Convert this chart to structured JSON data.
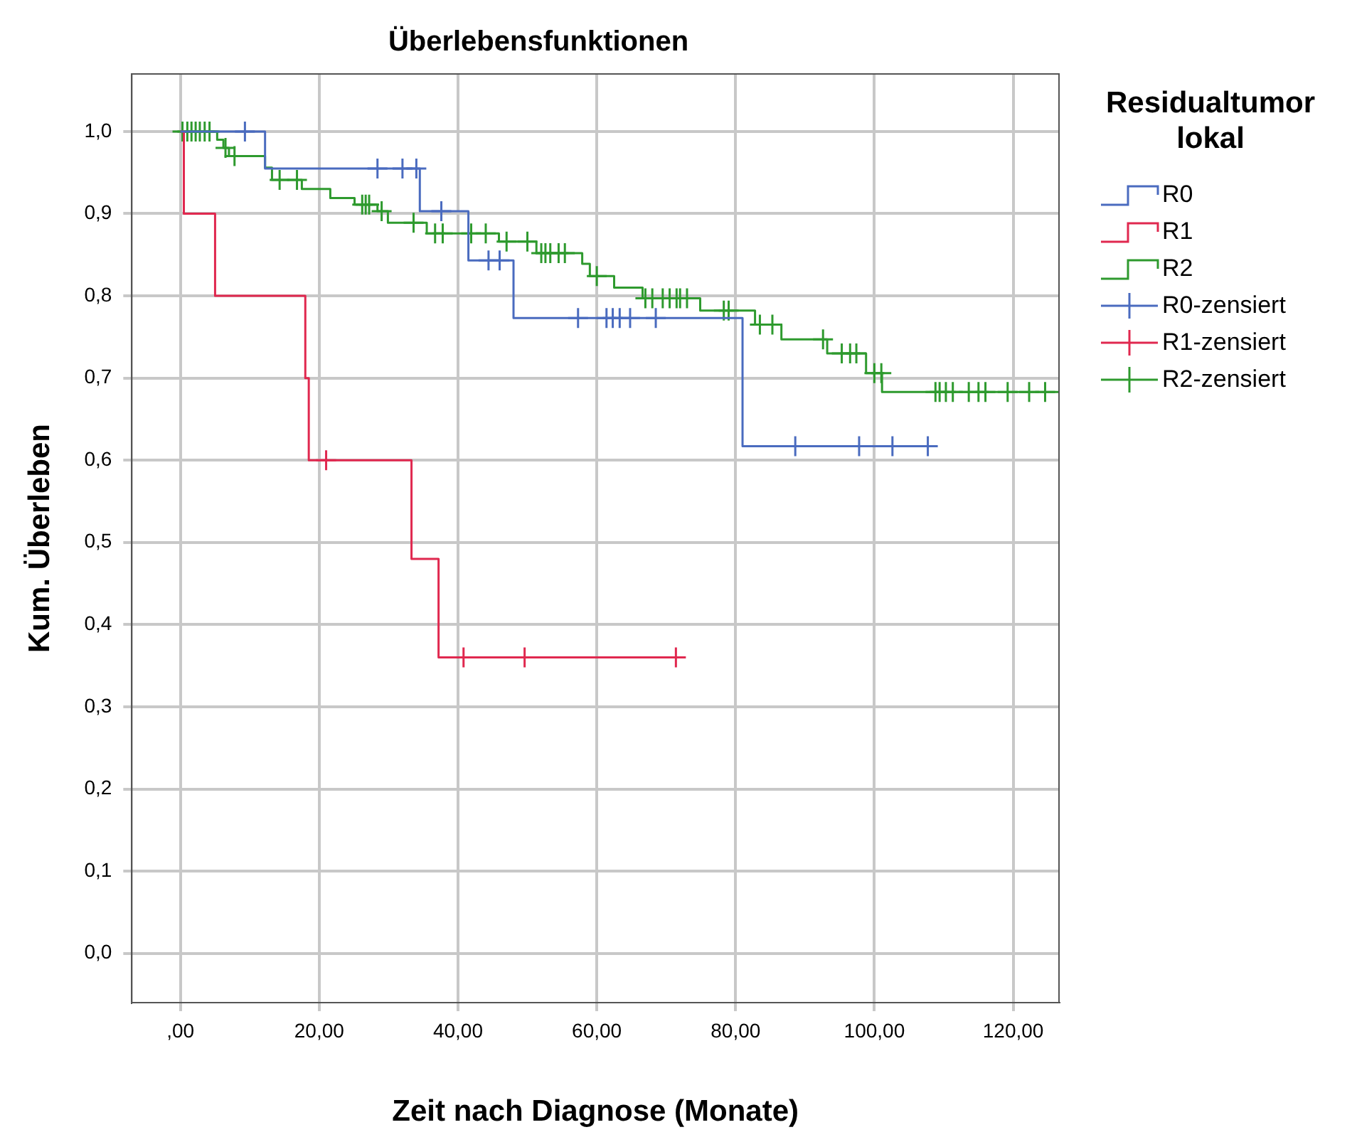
{
  "chart_data": {
    "type": "step",
    "title": "Überlebensfunktionen",
    "xlabel": "Zeit nach Diagnose (Monate)",
    "ylabel": "Kum. Überleben",
    "legend_title": "Residualtumor lokal",
    "legend": "right",
    "grid": true,
    "xlim": [
      -7,
      126.6
    ],
    "ylim": [
      -0.06,
      1.07
    ],
    "xticks": [
      {
        "value": 0,
        "label": ",00"
      },
      {
        "value": 20,
        "label": "20,00"
      },
      {
        "value": 40,
        "label": "40,00"
      },
      {
        "value": 60,
        "label": "60,00"
      },
      {
        "value": 80,
        "label": "80,00"
      },
      {
        "value": 100,
        "label": "100,00"
      },
      {
        "value": 120,
        "label": "120,00"
      }
    ],
    "yticks": [
      {
        "value": 0,
        "label": "0,0"
      },
      {
        "value": 0.1,
        "label": "0,1"
      },
      {
        "value": 0.2,
        "label": "0,2"
      },
      {
        "value": 0.3,
        "label": "0,3"
      },
      {
        "value": 0.4,
        "label": "0,4"
      },
      {
        "value": 0.5,
        "label": "0,5"
      },
      {
        "value": 0.6,
        "label": "0,6"
      },
      {
        "value": 0.7,
        "label": "0,7"
      },
      {
        "value": 0.8,
        "label": "0,8"
      },
      {
        "value": 0.9,
        "label": "0,9"
      },
      {
        "value": 1,
        "label": "1,0"
      }
    ],
    "series": [
      {
        "name": "R0",
        "type": "step",
        "marker": "none",
        "color": "#4a6bbf",
        "x": [
          0,
          12.2,
          34.5,
          41.5,
          48,
          81,
          109
        ],
        "values": [
          1,
          0.955,
          0.903,
          0.843,
          0.773,
          0.617,
          0.617
        ]
      },
      {
        "name": "R1",
        "type": "step",
        "marker": "none",
        "color": "#e0284f",
        "x": [
          0,
          0.5,
          5,
          18,
          18.5,
          33.3,
          37.2,
          71.4
        ],
        "values": [
          1,
          0.9,
          0.8,
          0.7,
          0.6,
          0.48,
          0.36,
          0.36
        ]
      },
      {
        "name": "R2",
        "type": "step",
        "marker": "none",
        "color": "#2e9a2e",
        "x": [
          0,
          5.3,
          6.2,
          7,
          12.2,
          13.2,
          17.5,
          21.6,
          25.1,
          28.4,
          29.9,
          35.5,
          45.9,
          51.3,
          57.9,
          59,
          62.5,
          66.6,
          74.9,
          82.8,
          86.6,
          93.2,
          98.8,
          101.1,
          126.6
        ],
        "values": [
          1,
          0.99,
          0.98,
          0.97,
          0.956,
          0.941,
          0.93,
          0.919,
          0.911,
          0.903,
          0.889,
          0.876,
          0.866,
          0.852,
          0.839,
          0.824,
          0.81,
          0.797,
          0.782,
          0.765,
          0.747,
          0.73,
          0.706,
          0.683,
          0.683
        ]
      },
      {
        "name": "R0-zensiert",
        "type": "scatter",
        "marker": "cross",
        "color": "#4a6bbf",
        "x": [
          9.3,
          28.4,
          32,
          34,
          37.6,
          44.4,
          46,
          57.3,
          61.4,
          62.3,
          63.3,
          64.8,
          68.5,
          88.6,
          97.8,
          102.6,
          107.7
        ],
        "values": [
          1,
          0.955,
          0.955,
          0.955,
          0.903,
          0.843,
          0.843,
          0.773,
          0.773,
          0.773,
          0.773,
          0.773,
          0.773,
          0.617,
          0.617,
          0.617,
          0.617
        ]
      },
      {
        "name": "R1-zensiert",
        "type": "scatter",
        "marker": "cross",
        "color": "#e0284f",
        "x": [
          21,
          40.8,
          49.6,
          71.4
        ],
        "values": [
          0.6,
          0.36,
          0.36,
          0.36
        ]
      },
      {
        "name": "R2-zensiert",
        "type": "scatter",
        "marker": "cross",
        "color": "#2e9a2e",
        "x": [
          0.3,
          1,
          1.6,
          2.2,
          2.8,
          3.5,
          4.2,
          6.5,
          7.8,
          14.3,
          16.8,
          26.2,
          26.7,
          27.2,
          29,
          33.6,
          36.7,
          37.8,
          41.9,
          44,
          47,
          50,
          52,
          52.6,
          53.3,
          54.5,
          55.4,
          60,
          67,
          68,
          69.5,
          70.5,
          71.5,
          72,
          73,
          78.3,
          79,
          83.5,
          85.3,
          92.6,
          95.3,
          96.5,
          97.4,
          100,
          101,
          108.8,
          109.4,
          110.3,
          111.3,
          113.6,
          115,
          116,
          119.2,
          122.3,
          124.6
        ],
        "values": [
          1,
          1,
          1,
          1,
          1,
          1,
          1,
          0.98,
          0.97,
          0.941,
          0.941,
          0.911,
          0.911,
          0.911,
          0.903,
          0.889,
          0.876,
          0.876,
          0.876,
          0.876,
          0.866,
          0.866,
          0.852,
          0.852,
          0.852,
          0.852,
          0.852,
          0.824,
          0.797,
          0.797,
          0.797,
          0.797,
          0.797,
          0.797,
          0.797,
          0.782,
          0.782,
          0.765,
          0.765,
          0.747,
          0.73,
          0.73,
          0.73,
          0.706,
          0.706,
          0.683,
          0.683,
          0.683,
          0.683,
          0.683,
          0.683,
          0.683,
          0.683,
          0.683,
          0.683
        ]
      }
    ]
  }
}
